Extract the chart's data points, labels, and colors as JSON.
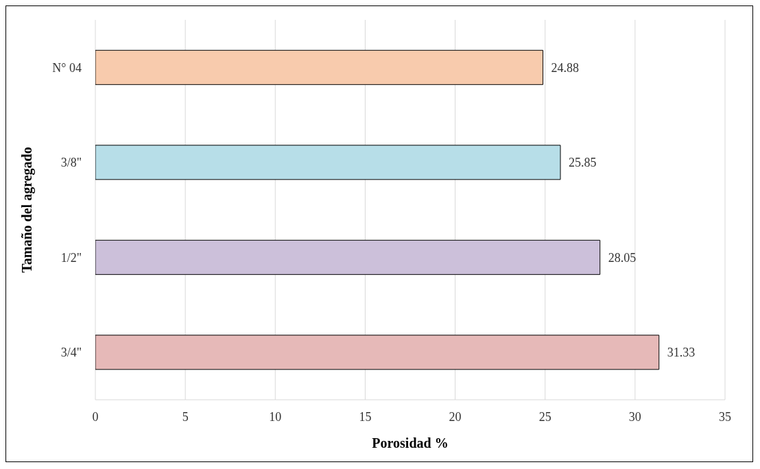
{
  "chart_data": {
    "type": "bar",
    "orientation": "horizontal",
    "xlabel": "Porosidad %",
    "ylabel": "Tamaño del agregado",
    "categories": [
      "N° 04",
      "3/8\"",
      "1/2\"",
      "3/4\""
    ],
    "values": [
      24.88,
      25.85,
      28.05,
      31.33
    ],
    "colors": [
      "#f8cbad",
      "#b7dee8",
      "#ccc0da",
      "#e6b9b8"
    ],
    "xlim": [
      0,
      35
    ],
    "xticks": [
      0,
      5,
      10,
      15,
      20,
      25,
      30,
      35
    ],
    "grid": "x",
    "data_labels": true,
    "legend": false
  }
}
